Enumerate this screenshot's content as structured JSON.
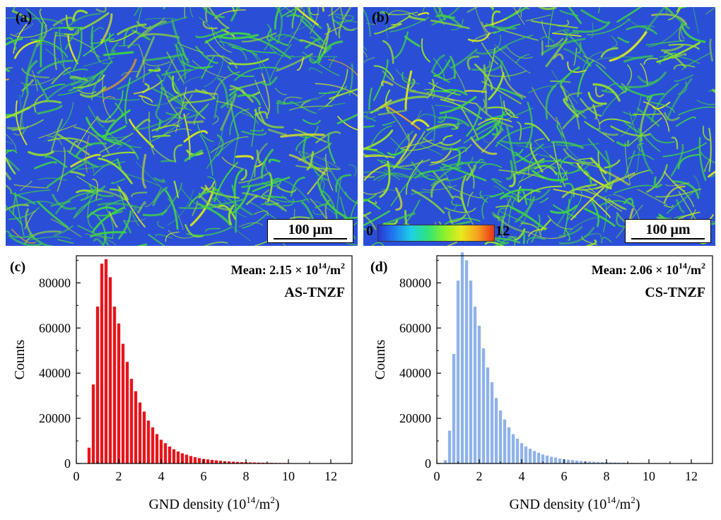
{
  "maps": [
    {
      "label": "(a)",
      "scale_bar": "100 μm"
    },
    {
      "label": "(b)",
      "scale_bar": "100 μm",
      "colorbar": {
        "min": "0",
        "max": "12"
      }
    }
  ],
  "colors": {
    "map_background": "#2a4fd6",
    "map_features": [
      "#3fd04a",
      "#9ae22b",
      "#d9e81f",
      "#e6a41f"
    ],
    "as_tnzf_bars": "#e8141a",
    "cs_tnzf_bars": "#8fb2ea"
  },
  "chart_data": [
    {
      "type": "bar",
      "panel_label": "(c)",
      "title": "AS-TNZF",
      "annotation": {
        "prefix": "Mean: 2.15 × 10",
        "exp": "14",
        "suffix": "/m",
        "sup2": "2"
      },
      "xlabel": {
        "main": "GND density (10",
        "exp": "14",
        "unit": "/m",
        "sup2": "2",
        ")": ")"
      },
      "ylabel": "Counts",
      "xlim": [
        0,
        13
      ],
      "ylim": [
        0,
        92000
      ],
      "xticks": [
        "0",
        "2",
        "4",
        "6",
        "8",
        "10",
        "12"
      ],
      "yticks": [
        "0",
        "20000",
        "40000",
        "60000",
        "80000"
      ],
      "bin_width": 0.2,
      "x": [
        0.6,
        0.8,
        1.0,
        1.2,
        1.4,
        1.6,
        1.8,
        2.0,
        2.2,
        2.4,
        2.6,
        2.8,
        3.0,
        3.2,
        3.4,
        3.6,
        3.8,
        4.0,
        4.2,
        4.4,
        4.6,
        4.8,
        5.0,
        5.2,
        5.4,
        5.6,
        5.8,
        6.0,
        6.2,
        6.4,
        6.6,
        6.8,
        7.0,
        7.2,
        7.4,
        7.6,
        7.8,
        8.0,
        8.2,
        8.4,
        8.6,
        8.8,
        9.0,
        9.2,
        9.4,
        9.6,
        9.8,
        10.0,
        10.2,
        10.4,
        10.6,
        10.8,
        11.0,
        11.2
      ],
      "values": [
        7000,
        35000,
        69500,
        88500,
        90500,
        82500,
        69500,
        62000,
        53000,
        45000,
        37500,
        32000,
        27000,
        23000,
        19000,
        16000,
        13000,
        10500,
        9000,
        7500,
        6300,
        5300,
        4500,
        3900,
        3300,
        2800,
        2400,
        2000,
        1800,
        1600,
        1400,
        1200,
        1000,
        900,
        800,
        700,
        600,
        550,
        500,
        450,
        400,
        350,
        320,
        290,
        260,
        230,
        200,
        180,
        160,
        140,
        120,
        100,
        80,
        60
      ]
    },
    {
      "type": "bar",
      "panel_label": "(d)",
      "title": "CS-TNZF",
      "annotation": {
        "prefix": "Mean: 2.06 × 10",
        "exp": "14",
        "suffix": "/m",
        "sup2": "2"
      },
      "xlabel": {
        "main": "GND density (10",
        "exp": "14",
        "unit": "/m",
        "sup2": "2",
        ")": ")"
      },
      "ylabel": "Counts",
      "xlim": [
        0,
        13
      ],
      "ylim": [
        0,
        92000
      ],
      "xticks": [
        "0",
        "2",
        "4",
        "6",
        "8",
        "10",
        "12"
      ],
      "yticks": [
        "0",
        "20000",
        "40000",
        "60000",
        "80000"
      ],
      "bin_width": 0.2,
      "x": [
        0.4,
        0.6,
        0.8,
        1.0,
        1.2,
        1.4,
        1.6,
        1.8,
        2.0,
        2.2,
        2.4,
        2.6,
        2.8,
        3.0,
        3.2,
        3.4,
        3.6,
        3.8,
        4.0,
        4.2,
        4.4,
        4.6,
        4.8,
        5.0,
        5.2,
        5.4,
        5.6,
        5.8,
        6.0,
        6.2,
        6.4,
        6.6,
        6.8,
        7.0,
        7.2,
        7.4,
        7.6,
        7.8,
        8.0,
        8.2,
        8.4,
        8.6,
        8.8,
        9.0,
        9.2,
        9.4,
        9.6,
        9.8,
        10.0,
        10.2,
        10.4,
        10.6,
        10.8,
        11.0
      ],
      "values": [
        1500,
        14500,
        48500,
        81000,
        93500,
        90000,
        81000,
        69500,
        61000,
        51000,
        42500,
        36000,
        29000,
        23500,
        19500,
        16000,
        13000,
        11000,
        9000,
        7500,
        6500,
        5500,
        4700,
        4000,
        3500,
        3000,
        2600,
        2200,
        1900,
        1700,
        1500,
        1300,
        1100,
        950,
        850,
        750,
        650,
        580,
        520,
        460,
        410,
        360,
        320,
        280,
        250,
        220,
        190,
        170,
        150,
        130,
        110,
        90,
        70,
        50
      ]
    }
  ]
}
